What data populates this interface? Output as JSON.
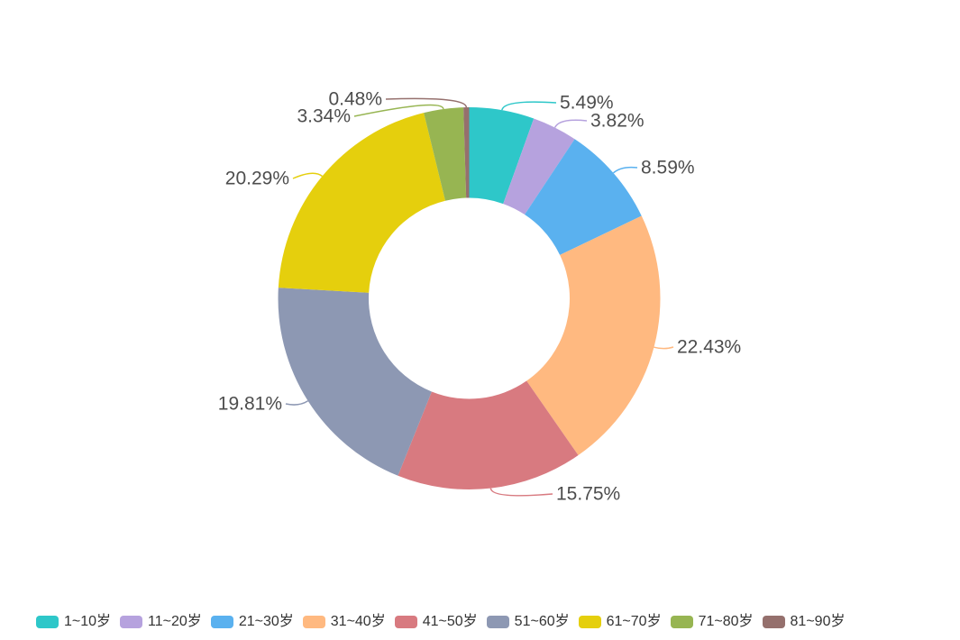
{
  "chart_data": {
    "type": "pie",
    "shape": "donut",
    "title": "",
    "categories": [
      "1~10岁",
      "11~20岁",
      "21~30岁",
      "31~40岁",
      "41~50岁",
      "51~60岁",
      "61~70岁",
      "71~80岁",
      "81~90岁"
    ],
    "values": [
      5.49,
      3.82,
      8.59,
      22.43,
      15.75,
      19.81,
      20.29,
      3.34,
      0.48
    ],
    "labels": [
      "5.49%",
      "3.82%",
      "8.59%",
      "22.43%",
      "15.75%",
      "19.81%",
      "20.29%",
      "3.34%",
      "0.48%"
    ],
    "colors": [
      "#2ec7c9",
      "#b6a2de",
      "#5ab1ef",
      "#ffb980",
      "#d87a80",
      "#8d98b3",
      "#e5cf0d",
      "#97b552",
      "#95706d"
    ],
    "unit": "%",
    "start_angle": "top",
    "direction": "clockwise",
    "inner_radius_ratio": 0.53,
    "legend_position": "bottom",
    "label_position": "outside"
  },
  "legend": {
    "items": [
      {
        "label": "1~10岁",
        "color": "#2ec7c9"
      },
      {
        "label": "11~20岁",
        "color": "#b6a2de"
      },
      {
        "label": "21~30岁",
        "color": "#5ab1ef"
      },
      {
        "label": "31~40岁",
        "color": "#ffb980"
      },
      {
        "label": "41~50岁",
        "color": "#d87a80"
      },
      {
        "label": "51~60岁",
        "color": "#8d98b3"
      },
      {
        "label": "61~70岁",
        "color": "#e5cf0d"
      },
      {
        "label": "71~80岁",
        "color": "#97b552"
      },
      {
        "label": "81~90岁",
        "color": "#95706d"
      }
    ]
  },
  "style": {
    "background": "#ffffff",
    "label_text_color": "#4d4d4d",
    "legend_text_color": "#333333"
  }
}
